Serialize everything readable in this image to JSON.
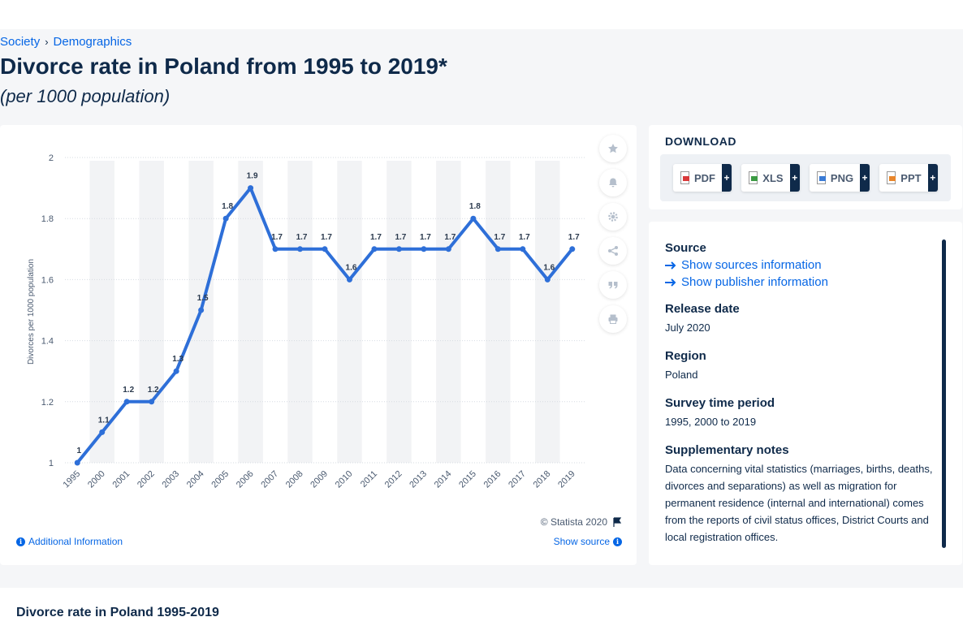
{
  "breadcrumb": {
    "items": [
      "Society",
      "Demographics"
    ],
    "separator": "›"
  },
  "page": {
    "title": "Divorce rate in Poland from 1995 to 2019*",
    "subtitle": "(per 1000 population)",
    "bottom_heading": "Divorce rate in Poland 1995-2019"
  },
  "chart_data": {
    "type": "line",
    "categories": [
      "1995",
      "2000",
      "2001",
      "2002",
      "2003",
      "2004",
      "2005",
      "2006",
      "2007",
      "2008",
      "2009",
      "2010",
      "2011",
      "2012",
      "2013",
      "2014",
      "2015",
      "2016",
      "2017",
      "2018",
      "2019"
    ],
    "values": [
      1,
      1.1,
      1.2,
      1.2,
      1.3,
      1.5,
      1.8,
      1.9,
      1.7,
      1.7,
      1.7,
      1.6,
      1.7,
      1.7,
      1.7,
      1.7,
      1.8,
      1.7,
      1.7,
      1.6,
      1.7
    ],
    "data_labels": [
      "1",
      "1.1",
      "1.2",
      "1.2",
      "1.3",
      "1.5",
      "1.8",
      "1.9",
      "1.7",
      "1.7",
      "1.7",
      "1.6",
      "1.7",
      "1.7",
      "1.7",
      "1.7",
      "1.8",
      "1.7",
      "1.7",
      "1.6",
      "1.7"
    ],
    "ylabel": "Divorces per 1000 population",
    "xlabel": "",
    "ylim": [
      1,
      2
    ],
    "yticks": [
      "1",
      "1.2",
      "1.4",
      "1.6",
      "1.8",
      "2"
    ],
    "grid": true,
    "line_color": "#2e6fd8",
    "band_color": "#f2f3f5"
  },
  "chart_footer": {
    "copyright": "© Statista 2020",
    "additional_info": "Additional Information",
    "show_source": "Show source"
  },
  "tools": [
    "star-icon",
    "bell-icon",
    "gear-icon",
    "share-icon",
    "quote-icon",
    "print-icon"
  ],
  "download": {
    "title": "DOWNLOAD",
    "formats": [
      {
        "label": "PDF",
        "color": "#d9393a"
      },
      {
        "label": "XLS",
        "color": "#3c9a43"
      },
      {
        "label": "PNG",
        "color": "#3a7bd5"
      },
      {
        "label": "PPT",
        "color": "#e8862b"
      }
    ],
    "plus": "+"
  },
  "details": {
    "source_label": "Source",
    "show_sources": "Show sources information",
    "show_publisher": "Show publisher information",
    "release_label": "Release date",
    "release_value": "July 2020",
    "region_label": "Region",
    "region_value": "Poland",
    "survey_label": "Survey time period",
    "survey_value": "1995, 2000 to 2019",
    "notes_label": "Supplementary notes",
    "notes_value": "Data concerning vital statistics (marriages, births, deaths, divorces and separations) as well as migration for permanent residence (internal and international) comes from the reports of civil status offices, District Courts and local registration offices."
  },
  "colors": {
    "accent": "#0666e5",
    "navy": "#0f2a4a"
  }
}
